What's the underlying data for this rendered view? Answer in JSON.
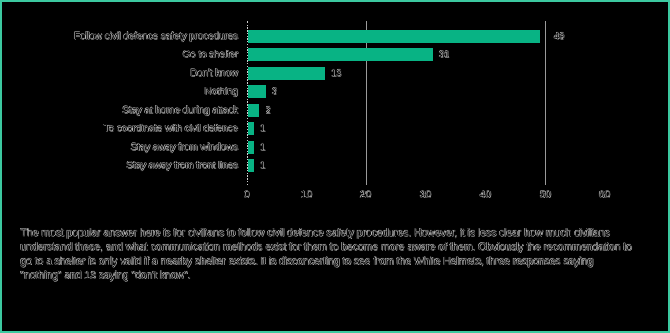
{
  "chart_data": {
    "type": "bar",
    "orientation": "horizontal",
    "title": "",
    "xlabel": "",
    "ylabel": "",
    "categories": [
      "Follow civil defence safety procedures",
      "Go to shelter",
      "Don't know",
      "Nothing",
      "Stay at home during attack",
      "To coordinate with civil defence",
      "Stay away from windows",
      "Stay away from front lines"
    ],
    "values": [
      49,
      31,
      13,
      3,
      2,
      1,
      1,
      1
    ],
    "value_labels": [
      "49",
      "31",
      "13",
      "3",
      "2",
      "1",
      "1",
      "1"
    ],
    "xlim": [
      0,
      60
    ],
    "x_ticks": [
      "0",
      "10",
      "20",
      "30",
      "40",
      "50",
      "60"
    ],
    "grid": "vertical",
    "legend": null,
    "bar_color": "#08b384"
  },
  "caption": "The most popular answer here is for civilians to follow civil defence safety procedures. However, it is less clear how much civilians understand these, and what communication methods exist for them to become more aware of them. Obviously the recommendation to go to a shelter is only valid if a nearby shelter exists. It is disconcerting to see from the White Helmets, three responses saying \"nothing\" and 13 saying \"don't know\".",
  "colors": {
    "bar": "#08b384",
    "border": "#3cc9a0",
    "background": "#000000"
  }
}
